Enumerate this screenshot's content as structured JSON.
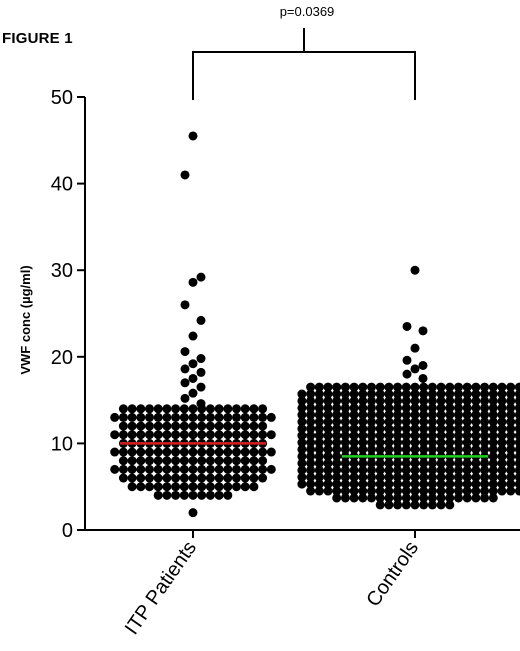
{
  "figure_label": "FIGURE 1",
  "chart_data": {
    "type": "scatter",
    "ylabel": "VWF conc (µg/ml)",
    "ylim": [
      0,
      50
    ],
    "yticks": [
      0,
      10,
      20,
      30,
      40,
      50
    ],
    "categories": [
      "ITP Patients",
      "Controls"
    ],
    "annotation": "p=0.0369",
    "grid": false,
    "legend": "none",
    "series": [
      {
        "category": "ITP Patients",
        "median": 10.0,
        "median_color": "#d62020",
        "outliers": [
          45.5,
          41,
          29.2,
          28.6,
          26,
          24.2,
          22.4,
          20.6,
          19.8,
          19.2,
          18.6,
          18.2,
          17.5,
          17.0,
          16.5,
          15.8,
          15.2,
          14.6
        ],
        "rows": [
          {
            "y": 14.0,
            "n": 17
          },
          {
            "y": 13.0,
            "n": 19
          },
          {
            "y": 12.0,
            "n": 17
          },
          {
            "y": 11.0,
            "n": 19
          },
          {
            "y": 10.0,
            "n": 17
          },
          {
            "y": 9.0,
            "n": 19
          },
          {
            "y": 8.0,
            "n": 17
          },
          {
            "y": 7.0,
            "n": 19
          },
          {
            "y": 6.0,
            "n": 17
          },
          {
            "y": 5.0,
            "n": 15
          },
          {
            "y": 4.0,
            "n": 9
          }
        ],
        "low": [
          2.0
        ]
      },
      {
        "category": "Controls",
        "median": 8.5,
        "median_color": "#22cc22",
        "outliers": [
          30.0,
          23.5,
          23.0,
          21.0,
          19.6,
          19.0,
          18.6,
          18.0,
          17.5
        ],
        "rows": [
          {
            "y": 16.5,
            "n": 25
          },
          {
            "y": 15.7,
            "n": 27
          },
          {
            "y": 14.9,
            "n": 27
          },
          {
            "y": 14.1,
            "n": 27
          },
          {
            "y": 13.3,
            "n": 27
          },
          {
            "y": 12.5,
            "n": 27
          },
          {
            "y": 11.7,
            "n": 27
          },
          {
            "y": 10.9,
            "n": 27
          },
          {
            "y": 10.1,
            "n": 27
          },
          {
            "y": 9.3,
            "n": 27
          },
          {
            "y": 8.5,
            "n": 27
          },
          {
            "y": 7.7,
            "n": 27
          },
          {
            "y": 6.9,
            "n": 27
          },
          {
            "y": 6.1,
            "n": 27
          },
          {
            "y": 5.3,
            "n": 27
          },
          {
            "y": 4.5,
            "n": 25
          },
          {
            "y": 3.7,
            "n": 19
          },
          {
            "y": 2.9,
            "n": 9
          }
        ],
        "low": []
      }
    ]
  }
}
